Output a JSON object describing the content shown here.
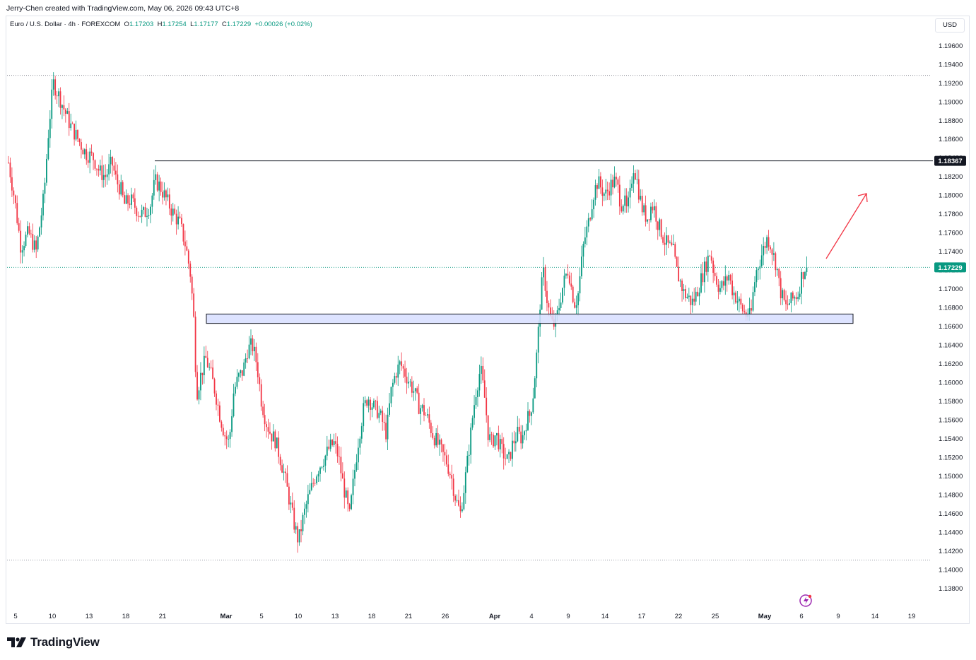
{
  "credit": "Jerry-Chen created with TradingView.com, May 06, 2026 09:43 UTC+8",
  "legend": {
    "symbol": "Euro / U.S. Dollar · 4h · FOREXCOM",
    "o_label": "O",
    "o_value": "1.17203",
    "h_label": "H",
    "h_value": "1.17254",
    "l_label": "L",
    "l_value": "1.17177",
    "c_label": "C",
    "c_value": "1.17229",
    "change": "+0.00026 (+0.02%)"
  },
  "currency_button": "USD",
  "brand": "TradingView",
  "colors": {
    "up": "#089981",
    "down": "#f23645",
    "zone_fill": "#d7deff",
    "zone_stroke": "#131722",
    "arrow": "#f23645",
    "dotted": "#787b86"
  },
  "chart_data": {
    "type": "candlestick",
    "timeframe": "4h",
    "ylim": [
      1.137,
      1.198
    ],
    "y_ticks": [
      "1.19600",
      "1.19400",
      "1.19200",
      "1.19000",
      "1.18800",
      "1.18600",
      "1.18400",
      "1.18200",
      "1.18000",
      "1.17800",
      "1.17600",
      "1.17400",
      "1.17200",
      "1.17000",
      "1.16800",
      "1.16600",
      "1.16400",
      "1.16200",
      "1.16000",
      "1.15800",
      "1.15600",
      "1.15400",
      "1.15200",
      "1.15000",
      "1.14800",
      "1.14600",
      "1.14400",
      "1.14200",
      "1.14000",
      "1.13800"
    ],
    "x_ticks": [
      "5",
      "10",
      "13",
      "18",
      "21",
      "Mar",
      "5",
      "10",
      "13",
      "18",
      "21",
      "26",
      "Apr",
      "4",
      "9",
      "14",
      "17",
      "22",
      "25",
      "May",
      "6",
      "9",
      "14",
      "19"
    ],
    "path": [
      [
        0,
        1.1835
      ],
      [
        8,
        1.1795
      ],
      [
        16,
        1.1745
      ],
      [
        26,
        1.176
      ],
      [
        36,
        1.174
      ],
      [
        46,
        1.18
      ],
      [
        52,
        1.187
      ],
      [
        58,
        1.192
      ],
      [
        66,
        1.1905
      ],
      [
        72,
        1.1892
      ],
      [
        80,
        1.1875
      ],
      [
        90,
        1.186
      ],
      [
        100,
        1.1845
      ],
      [
        110,
        1.184
      ],
      [
        118,
        1.1825
      ],
      [
        126,
        1.182
      ],
      [
        134,
        1.1835
      ],
      [
        140,
        1.1815
      ],
      [
        146,
        1.1805
      ],
      [
        150,
        1.179
      ],
      [
        158,
        1.1795
      ],
      [
        164,
        1.1788
      ],
      [
        170,
        1.178
      ],
      [
        176,
        1.178
      ],
      [
        184,
        1.179
      ],
      [
        190,
        1.1815
      ],
      [
        196,
        1.181
      ],
      [
        202,
        1.18
      ],
      [
        208,
        1.179
      ],
      [
        214,
        1.178
      ],
      [
        222,
        1.177
      ],
      [
        230,
        1.1745
      ],
      [
        236,
        1.1715
      ],
      [
        240,
        1.1672
      ],
      [
        244,
        1.1588
      ],
      [
        250,
        1.161
      ],
      [
        256,
        1.1625
      ],
      [
        262,
        1.161
      ],
      [
        268,
        1.159
      ],
      [
        274,
        1.1565
      ],
      [
        280,
        1.1545
      ],
      [
        286,
        1.1535
      ],
      [
        292,
        1.159
      ],
      [
        298,
        1.1605
      ],
      [
        304,
        1.1612
      ],
      [
        310,
        1.1635
      ],
      [
        316,
        1.164
      ],
      [
        322,
        1.162
      ],
      [
        328,
        1.158
      ],
      [
        334,
        1.1558
      ],
      [
        340,
        1.1545
      ],
      [
        346,
        1.1538
      ],
      [
        352,
        1.152
      ],
      [
        358,
        1.15
      ],
      [
        364,
        1.1475
      ],
      [
        370,
        1.145
      ],
      [
        376,
        1.143
      ],
      [
        382,
        1.1455
      ],
      [
        388,
        1.1475
      ],
      [
        394,
        1.149
      ],
      [
        400,
        1.1505
      ],
      [
        406,
        1.1515
      ],
      [
        410,
        1.152
      ],
      [
        416,
        1.153
      ],
      [
        422,
        1.1535
      ],
      [
        428,
        1.152
      ],
      [
        434,
        1.149
      ],
      [
        438,
        1.1475
      ],
      [
        442,
        1.1455
      ],
      [
        448,
        1.15
      ],
      [
        454,
        1.154
      ],
      [
        460,
        1.157
      ],
      [
        466,
        1.1585
      ],
      [
        472,
        1.1575
      ],
      [
        478,
        1.157
      ],
      [
        484,
        1.156
      ],
      [
        490,
        1.1545
      ],
      [
        496,
        1.159
      ],
      [
        502,
        1.161
      ],
      [
        508,
        1.162
      ],
      [
        514,
        1.161
      ],
      [
        520,
        1.16
      ],
      [
        526,
        1.159
      ],
      [
        532,
        1.1575
      ],
      [
        538,
        1.157
      ],
      [
        544,
        1.156
      ],
      [
        550,
        1.1545
      ],
      [
        556,
        1.1535
      ],
      [
        562,
        1.1525
      ],
      [
        568,
        1.1515
      ],
      [
        574,
        1.15
      ],
      [
        580,
        1.1475
      ],
      [
        586,
        1.146
      ],
      [
        592,
        1.1495
      ],
      [
        598,
        1.1535
      ],
      [
        602,
        1.1565
      ],
      [
        606,
        1.159
      ],
      [
        612,
        1.1615
      ],
      [
        618,
        1.158
      ],
      [
        622,
        1.1545
      ],
      [
        626,
        1.1535
      ],
      [
        632,
        1.1545
      ],
      [
        638,
        1.153
      ],
      [
        644,
        1.152
      ],
      [
        648,
        1.1515
      ],
      [
        654,
        1.1535
      ],
      [
        660,
        1.1545
      ],
      [
        666,
        1.154
      ],
      [
        672,
        1.156
      ],
      [
        676,
        1.1565
      ],
      [
        680,
        1.1585
      ],
      [
        686,
        1.164
      ],
      [
        690,
        1.1695
      ],
      [
        694,
        1.1718
      ],
      [
        698,
        1.169
      ],
      [
        702,
        1.167
      ],
      [
        706,
        1.166
      ],
      [
        710,
        1.1665
      ],
      [
        714,
        1.1682
      ],
      [
        718,
        1.17
      ],
      [
        722,
        1.1712
      ],
      [
        726,
        1.1722
      ],
      [
        730,
        1.17
      ],
      [
        734,
        1.1685
      ],
      [
        738,
        1.169
      ],
      [
        742,
        1.172
      ],
      [
        746,
        1.175
      ],
      [
        752,
        1.177
      ],
      [
        758,
        1.18
      ],
      [
        764,
        1.1815
      ],
      [
        770,
        1.1805
      ],
      [
        774,
        1.18
      ],
      [
        780,
        1.181
      ],
      [
        786,
        1.1815
      ],
      [
        790,
        1.1808
      ],
      [
        794,
        1.179
      ],
      [
        798,
        1.1795
      ],
      [
        802,
        1.1782
      ],
      [
        806,
        1.18
      ],
      [
        810,
        1.1832
      ],
      [
        814,
        1.182
      ],
      [
        818,
        1.18
      ],
      [
        822,
        1.1785
      ],
      [
        828,
        1.1775
      ],
      [
        834,
        1.179
      ],
      [
        838,
        1.1785
      ],
      [
        842,
        1.177
      ],
      [
        846,
        1.1762
      ],
      [
        850,
        1.1752
      ],
      [
        856,
        1.1745
      ],
      [
        862,
        1.174
      ],
      [
        866,
        1.172
      ],
      [
        872,
        1.1705
      ],
      [
        876,
        1.1695
      ],
      [
        882,
        1.169
      ],
      [
        886,
        1.1685
      ],
      [
        890,
        1.169
      ],
      [
        896,
        1.1705
      ],
      [
        902,
        1.172
      ],
      [
        906,
        1.173
      ],
      [
        910,
        1.174
      ],
      [
        914,
        1.172
      ],
      [
        918,
        1.171
      ],
      [
        922,
        1.17
      ],
      [
        928,
        1.1705
      ],
      [
        934,
        1.1715
      ],
      [
        938,
        1.17
      ],
      [
        944,
        1.169
      ],
      [
        950,
        1.168
      ],
      [
        956,
        1.1672
      ],
      [
        960,
        1.1675
      ],
      [
        962,
        1.1665
      ],
      [
        966,
        1.17
      ],
      [
        970,
        1.172
      ],
      [
        976,
        1.1735
      ],
      [
        980,
        1.1745
      ],
      [
        984,
        1.1755
      ],
      [
        988,
        1.1748
      ],
      [
        992,
        1.1735
      ],
      [
        996,
        1.1725
      ],
      [
        1000,
        1.17
      ],
      [
        1004,
        1.169
      ],
      [
        1008,
        1.168
      ],
      [
        1012,
        1.1685
      ],
      [
        1016,
        1.1688
      ],
      [
        1020,
        1.1692
      ],
      [
        1024,
        1.1695
      ],
      [
        1028,
        1.1712
      ],
      [
        1032,
        1.1722
      ],
      [
        1035,
        1.1723
      ]
    ],
    "resistance_level": 1.18367,
    "resistance_label": "1.18367",
    "last_price": 1.17229,
    "last_price_label": "1.17229",
    "support_zone": [
      1.1663,
      1.1673
    ],
    "range_high_dotted": 1.1928,
    "range_low_dotted": 1.141,
    "projection_arrow": "up",
    "grid": false
  }
}
